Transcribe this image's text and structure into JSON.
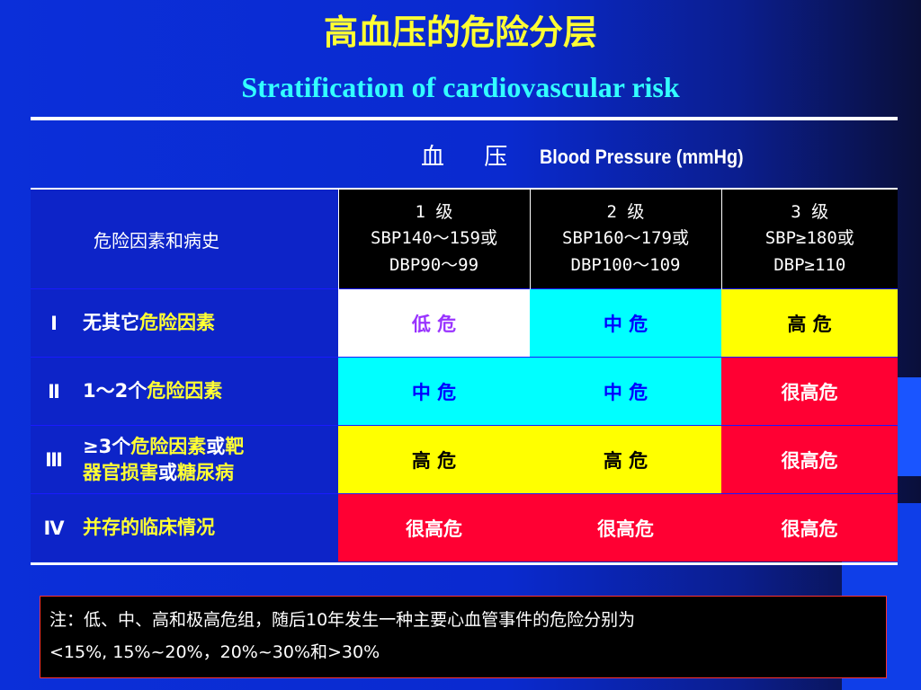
{
  "slide": {
    "title_cn": "高血压的危险分层",
    "title_en": "Stratification of cardiovascular risk"
  },
  "bp_header": {
    "cn": "血 压",
    "en": "Blood Pressure (mmHg)"
  },
  "table": {
    "corner_label": "危险因素和病史",
    "grades": [
      {
        "line1": "1 级",
        "line2": "SBP140～159或",
        "line3": "DBP90～99"
      },
      {
        "line1": "2 级",
        "line2": "SBP160～179或",
        "line3": "DBP100～109"
      },
      {
        "line1": "3 级",
        "line2": "SBP≥180或",
        "line3": "DBP≥110"
      }
    ],
    "rows": [
      {
        "level": "Ⅰ",
        "desc_white": "无其它",
        "desc_yellow": "危险因素",
        "cells": [
          "低 危",
          "中 危",
          "高 危"
        ]
      },
      {
        "level": "Ⅱ",
        "desc_white": "1～2个",
        "desc_yellow": "危险因素",
        "cells": [
          "中 危",
          "中 危",
          "很高危"
        ]
      },
      {
        "level": "Ⅲ",
        "desc_line1_white": "≥3个",
        "desc_line1_yellow": "危险因素",
        "desc_line1_white2": "或",
        "desc_line1_yellow2": "靶",
        "desc_line2_yellow": "器官损害",
        "desc_line2_white": "或",
        "desc_line2_yellow2": "糖尿病",
        "cells": [
          "高 危",
          "高 危",
          "很高危"
        ]
      },
      {
        "level": "Ⅳ",
        "desc_yellow": "并存的临床情况",
        "cells": [
          "很高危",
          "很高危",
          "很高危"
        ]
      }
    ]
  },
  "note": {
    "line1": "注：低、中、高和极高危组，随后10年发生一种主要心血管事件的危险分别为",
    "line2": "<15%, 15%~20%，20%~30%和>30%"
  },
  "colors": {
    "title_cn": "#ffff33",
    "title_en": "#33ffff",
    "low": "#ffffff",
    "medium": "#00ffff",
    "high": "#ffff00",
    "very_high": "#ff0033"
  }
}
